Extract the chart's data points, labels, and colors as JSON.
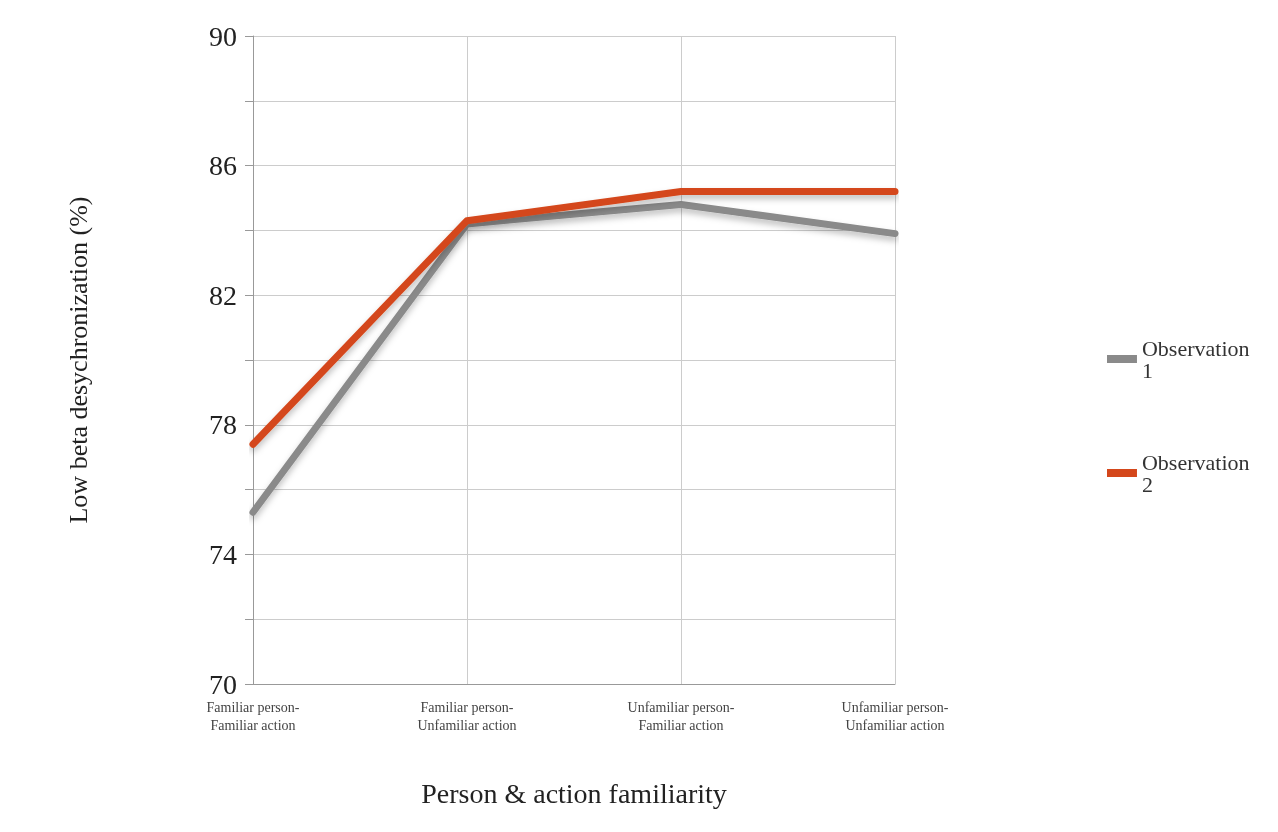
{
  "chart_data": {
    "type": "line",
    "xlabel": "Person & action familiarity",
    "ylabel": "Low beta desychronization (%)",
    "categories": [
      "Familiar person-Familiar action",
      "Familiar person-Unfamiliar action",
      "Unfamiliar person-Familiar action",
      "Unfamiliar person-Unfamiliar action"
    ],
    "series": [
      {
        "name": "Observation 1",
        "color": "#8a8a8a",
        "values": [
          75.3,
          84.2,
          84.8,
          83.9
        ]
      },
      {
        "name": "Observation 2",
        "color": "#d4471b",
        "values": [
          77.4,
          84.3,
          85.2,
          85.2
        ]
      }
    ],
    "ylim": [
      70,
      90
    ],
    "yticks": [
      70,
      {
        "value": 72,
        "label": null
      },
      74,
      {
        "value": 76,
        "label": null
      },
      78,
      {
        "value": 80,
        "label": null
      },
      82,
      {
        "value": 84,
        "label": null
      },
      86,
      {
        "value": 88,
        "label": null
      },
      90
    ],
    "grid": true,
    "legend": "right",
    "marker": "none",
    "line_style": "solid"
  }
}
